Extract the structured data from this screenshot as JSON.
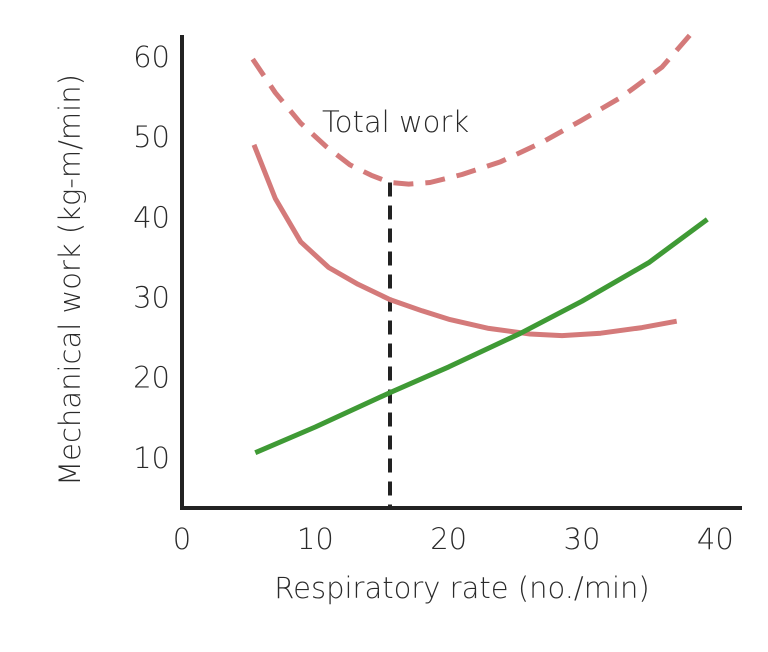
{
  "chart_data": {
    "type": "line",
    "x_label": "Respiratory rate (no./min)",
    "y_label": "Mechanical work (kg-m/min)",
    "xlim": [
      0,
      42
    ],
    "ylim": [
      4,
      63
    ],
    "xticks": [
      0,
      10,
      20,
      30,
      40
    ],
    "yticks": [
      10,
      20,
      30,
      40,
      50,
      60
    ],
    "series": [
      {
        "name": "Total work",
        "color": "#d47a7a",
        "dashed": true,
        "x": [
          5.3,
          7,
          8.9,
          10.8,
          12.6,
          14.2,
          15.6,
          17,
          18.6,
          21,
          23.9,
          27,
          29.9,
          33,
          36,
          38.1
        ],
        "values": [
          60,
          55.8,
          52,
          49.1,
          46.8,
          45.5,
          44.6,
          44.4,
          44.6,
          45.6,
          47.2,
          49.6,
          52.3,
          55.3,
          59,
          63
        ]
      },
      {
        "color": "#d47a7a",
        "dashed": false,
        "x": [
          5.4,
          7,
          8.9,
          11,
          13.2,
          15.6,
          18,
          20.1,
          23,
          26.1,
          28.5,
          31.4,
          34.5,
          37.1
        ],
        "values": [
          49.3,
          42.6,
          37.2,
          34,
          31.9,
          30,
          28.6,
          27.5,
          26.4,
          25.7,
          25.5,
          25.8,
          26.5,
          27.3
        ]
      },
      {
        "color": "#3f9a35",
        "dashed": false,
        "x": [
          5.5,
          10,
          15.6,
          20,
          25.4,
          30,
          35,
          39.4
        ],
        "values": [
          10.9,
          14.1,
          18.4,
          21.6,
          25.8,
          29.8,
          34.6,
          40
        ]
      }
    ],
    "marker": {
      "x": 15.6,
      "y": 44.6
    }
  }
}
